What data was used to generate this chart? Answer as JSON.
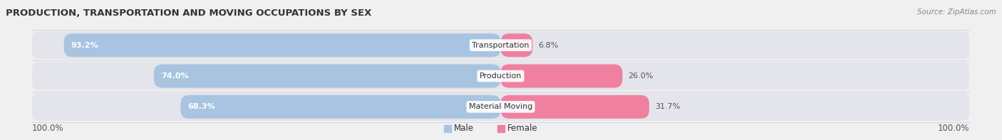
{
  "title": "PRODUCTION, TRANSPORTATION AND MOVING OCCUPATIONS BY SEX",
  "source": "Source: ZipAtlas.com",
  "categories": [
    "Transportation",
    "Production",
    "Material Moving"
  ],
  "male_pct": [
    93.2,
    74.0,
    68.3
  ],
  "female_pct": [
    6.8,
    26.0,
    31.7
  ],
  "male_color": "#a8c4e0",
  "female_color": "#f080a0",
  "male_label": "Male",
  "female_label": "Female",
  "axis_label_left": "100.0%",
  "axis_label_right": "100.0%",
  "bg_color": "#f0f0f0",
  "row_bg_color": "#e0e0e8",
  "title_fontsize": 9.5,
  "source_fontsize": 7.5,
  "label_fontsize": 8.5,
  "bar_label_fontsize": 8,
  "cat_fontsize": 8
}
